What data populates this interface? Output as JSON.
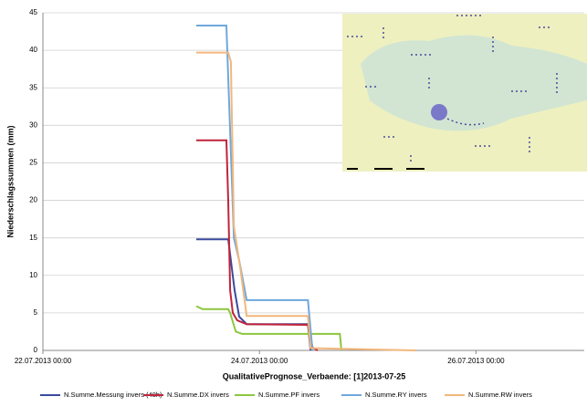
{
  "chart_data": {
    "type": "line",
    "x_label": "QualitativePrognose_Verbaende: [1]2013-07-25",
    "y_label": "Niederschlagssummen (mm)",
    "xlim": [
      "2013-07-22T00:00",
      "2013-07-27T00:00"
    ],
    "xticks": [
      {
        "value": "2013-07-22T00:00",
        "label": "22.07.2013 00:00"
      },
      {
        "value": "2013-07-24T00:00",
        "label": "24.07.2013 00:00"
      },
      {
        "value": "2013-07-26T00:00",
        "label": "26.07.2013 00:00"
      }
    ],
    "ylim": [
      0,
      45
    ],
    "yticks": [
      0,
      5,
      10,
      15,
      20,
      25,
      30,
      35,
      40,
      45
    ],
    "grid": true,
    "series": [
      {
        "name": "N.Summe.Messung invers (48h)",
        "color": "#3b4a9c",
        "x": [
          "2013-07-23T10:00",
          "2013-07-23T17:05",
          "2013-07-23T18:30",
          "2013-07-23T19:30",
          "2013-07-23T21:10",
          "2013-07-24T10:45",
          "2013-07-24T11:20"
        ],
        "values": [
          14.8,
          14.8,
          8,
          4.5,
          3.5,
          3.5,
          0
        ]
      },
      {
        "name": "N.Summe.DX invers",
        "color": "#c0243c",
        "x": [
          "2013-07-23T10:00",
          "2013-07-23T16:40",
          "2013-07-23T17:05",
          "2013-07-23T17:30",
          "2013-07-23T18:05",
          "2013-07-23T19:05",
          "2013-07-23T21:10",
          "2013-07-24T10:45",
          "2013-07-24T11:45",
          "2013-07-24T12:55"
        ],
        "values": [
          28,
          28,
          20,
          8,
          5,
          4,
          3.5,
          3.4,
          0.4,
          0
        ]
      },
      {
        "name": "N.Summe.PF invers",
        "color": "#8cc63f",
        "x": [
          "2013-07-23T10:00",
          "2013-07-23T11:25",
          "2013-07-23T17:05",
          "2013-07-23T17:30",
          "2013-07-23T18:45",
          "2013-07-23T20:10",
          "2013-07-24T17:50",
          "2013-07-24T18:10"
        ],
        "values": [
          5.9,
          5.5,
          5.5,
          5,
          2.5,
          2.2,
          2.2,
          0
        ]
      },
      {
        "name": "N.Summe.RY invers",
        "color": "#6fa8dc",
        "x": [
          "2013-07-23T10:00",
          "2013-07-23T16:40",
          "2013-07-23T18:20",
          "2013-07-23T19:30",
          "2013-07-23T21:10",
          "2013-07-24T10:45",
          "2013-07-24T11:45"
        ],
        "values": [
          43.3,
          43.3,
          15,
          12,
          6.7,
          6.7,
          0
        ]
      },
      {
        "name": "N.Summe.RW invers",
        "color": "#f2b77c",
        "x": [
          "2013-07-23T10:00",
          "2013-07-23T17:05",
          "2013-07-23T17:40",
          "2013-07-23T18:20",
          "2013-07-23T19:45",
          "2013-07-23T21:10",
          "2013-07-24T10:45",
          "2013-07-24T11:20",
          "2013-07-25T10:40"
        ],
        "values": [
          39.7,
          39.7,
          38.5,
          16.5,
          11,
          4.6,
          4.6,
          0.3,
          0
        ]
      }
    ]
  }
}
